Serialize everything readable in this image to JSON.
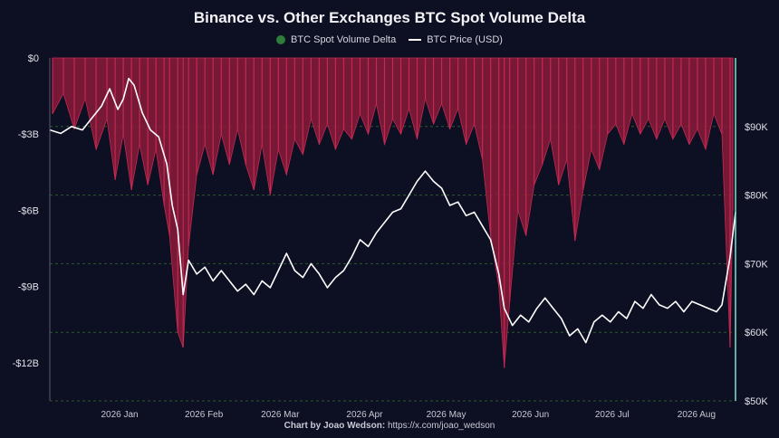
{
  "title": "Binance vs. Other Exchanges BTC Spot Volume Delta",
  "legend": {
    "delta_label": "BTC Spot Volume Delta",
    "price_label": "BTC Price (USD)"
  },
  "credit": {
    "prefix": "Chart by Joao Wedson:",
    "link": "https://x.com/joao_wedson"
  },
  "colors": {
    "background": "#0d0f22",
    "delta_fill": "#8b1a3a",
    "delta_edge": "#c22a52",
    "delta_legend": "#2e7d3a",
    "price_line": "#ffffff",
    "grid": "#2d5a2d",
    "right_axis": "#7fe0d0"
  },
  "chart_data": {
    "type": "area",
    "title": "Binance vs. Other Exchanges BTC Spot Volume Delta",
    "x_tick_labels": [
      "2026 Jan",
      "2026 Feb",
      "2026 Mar",
      "2026 Apr",
      "2026 May",
      "2026 Jun",
      "2026 Jul",
      "2026 Aug"
    ],
    "x_tick_dates": [
      "2026-01-01",
      "2026-02-01",
      "2026-03-01",
      "2026-04-01",
      "2026-05-01",
      "2026-06-01",
      "2026-07-01",
      "2026-08-01"
    ],
    "x_range": [
      "2025-12-17",
      "2026-08-26"
    ],
    "y_left": {
      "label": "",
      "ylim": [
        -13.5,
        0
      ],
      "ticks": [
        0,
        -3,
        -6,
        -9,
        -12
      ],
      "tick_labels": [
        "$0",
        "-$3B",
        "-$6B",
        "-$9B",
        "-$12B"
      ],
      "unit": "B USD"
    },
    "y_right": {
      "label": "",
      "ylim": [
        50000,
        100000
      ],
      "ticks": [
        50000,
        60000,
        70000,
        80000,
        90000
      ],
      "tick_labels": [
        "$50K",
        "$60K",
        "$70K",
        "$80K",
        "$90K"
      ]
    },
    "grid": true,
    "legend_position": "top-center",
    "series": [
      {
        "name": "BTC Spot Volume Delta",
        "axis": "left",
        "points": [
          [
            "2025-12-18",
            -2.2
          ],
          [
            "2025-12-22",
            -1.4
          ],
          [
            "2025-12-26",
            -2.8
          ],
          [
            "2025-12-30",
            -1.6
          ],
          [
            "2026-01-03",
            -3.6
          ],
          [
            "2026-01-07",
            -2.4
          ],
          [
            "2026-01-10",
            -4.8
          ],
          [
            "2026-01-13",
            -3.0
          ],
          [
            "2026-01-16",
            -5.2
          ],
          [
            "2026-01-19",
            -3.4
          ],
          [
            "2026-01-22",
            -5.0
          ],
          [
            "2026-01-25",
            -3.6
          ],
          [
            "2026-01-28",
            -5.8
          ],
          [
            "2026-01-30",
            -7.0
          ],
          [
            "2026-02-02",
            -10.8
          ],
          [
            "2026-02-04",
            -11.4
          ],
          [
            "2026-02-06",
            -7.4
          ],
          [
            "2026-02-09",
            -4.6
          ],
          [
            "2026-02-12",
            -3.4
          ],
          [
            "2026-02-15",
            -4.6
          ],
          [
            "2026-02-18",
            -3.0
          ],
          [
            "2026-02-21",
            -4.2
          ],
          [
            "2026-02-24",
            -2.8
          ],
          [
            "2026-02-27",
            -4.2
          ],
          [
            "2026-03-02",
            -5.2
          ],
          [
            "2026-03-05",
            -3.4
          ],
          [
            "2026-03-08",
            -5.4
          ],
          [
            "2026-03-11",
            -3.6
          ],
          [
            "2026-03-14",
            -4.6
          ],
          [
            "2026-03-17",
            -3.2
          ],
          [
            "2026-03-20",
            -3.8
          ],
          [
            "2026-03-23",
            -2.4
          ],
          [
            "2026-03-26",
            -3.4
          ],
          [
            "2026-03-29",
            -2.6
          ],
          [
            "2026-04-01",
            -3.6
          ],
          [
            "2026-04-04",
            -2.8
          ],
          [
            "2026-04-07",
            -3.2
          ],
          [
            "2026-04-10",
            -2.2
          ],
          [
            "2026-04-13",
            -3.0
          ],
          [
            "2026-04-16",
            -1.8
          ],
          [
            "2026-04-19",
            -3.4
          ],
          [
            "2026-04-22",
            -2.4
          ],
          [
            "2026-04-25",
            -3.0
          ],
          [
            "2026-04-28",
            -2.0
          ],
          [
            "2026-05-01",
            -3.2
          ],
          [
            "2026-05-04",
            -1.6
          ],
          [
            "2026-05-07",
            -2.6
          ],
          [
            "2026-05-10",
            -1.8
          ],
          [
            "2026-05-13",
            -2.8
          ],
          [
            "2026-05-16",
            -2.0
          ],
          [
            "2026-05-19",
            -3.4
          ],
          [
            "2026-05-22",
            -2.6
          ],
          [
            "2026-05-25",
            -4.0
          ],
          [
            "2026-05-28",
            -7.0
          ],
          [
            "2026-05-31",
            -9.0
          ],
          [
            "2026-06-02",
            -12.2
          ],
          [
            "2026-06-04",
            -9.6
          ],
          [
            "2026-06-07",
            -6.0
          ],
          [
            "2026-06-10",
            -7.0
          ],
          [
            "2026-06-13",
            -5.0
          ],
          [
            "2026-06-16",
            -4.2
          ],
          [
            "2026-06-19",
            -3.2
          ],
          [
            "2026-06-22",
            -5.0
          ],
          [
            "2026-06-25",
            -4.0
          ],
          [
            "2026-06-28",
            -7.2
          ],
          [
            "2026-07-01",
            -5.2
          ],
          [
            "2026-07-04",
            -3.6
          ],
          [
            "2026-07-07",
            -4.4
          ],
          [
            "2026-07-10",
            -3.0
          ],
          [
            "2026-07-13",
            -2.6
          ],
          [
            "2026-07-16",
            -3.4
          ],
          [
            "2026-07-19",
            -2.2
          ],
          [
            "2026-07-22",
            -3.0
          ],
          [
            "2026-07-25",
            -2.4
          ],
          [
            "2026-07-28",
            -3.2
          ],
          [
            "2026-07-31",
            -2.4
          ],
          [
            "2026-08-03",
            -3.2
          ],
          [
            "2026-08-06",
            -2.6
          ],
          [
            "2026-08-09",
            -3.4
          ],
          [
            "2026-08-12",
            -2.8
          ],
          [
            "2026-08-15",
            -3.6
          ],
          [
            "2026-08-18",
            -2.2
          ],
          [
            "2026-08-21",
            -3.0
          ],
          [
            "2026-08-24",
            -11.4
          ],
          [
            "2026-08-25",
            -6.0
          ]
        ]
      },
      {
        "name": "BTC Price (USD)",
        "axis": "right",
        "points": [
          [
            "2025-12-17",
            89500
          ],
          [
            "2025-12-21",
            89000
          ],
          [
            "2025-12-25",
            90000
          ],
          [
            "2025-12-29",
            89500
          ],
          [
            "2026-01-02",
            91500
          ],
          [
            "2026-01-05",
            93000
          ],
          [
            "2026-01-08",
            95500
          ],
          [
            "2026-01-11",
            92500
          ],
          [
            "2026-01-13",
            94000
          ],
          [
            "2026-01-15",
            97000
          ],
          [
            "2026-01-17",
            96000
          ],
          [
            "2026-01-20",
            92000
          ],
          [
            "2026-01-23",
            89500
          ],
          [
            "2026-01-26",
            88500
          ],
          [
            "2026-01-29",
            84500
          ],
          [
            "2026-01-31",
            78500
          ],
          [
            "2026-02-02",
            75000
          ],
          [
            "2026-02-04",
            65500
          ],
          [
            "2026-02-06",
            70500
          ],
          [
            "2026-02-09",
            68500
          ],
          [
            "2026-02-12",
            69500
          ],
          [
            "2026-02-15",
            67500
          ],
          [
            "2026-02-18",
            69000
          ],
          [
            "2026-02-21",
            67500
          ],
          [
            "2026-02-24",
            66000
          ],
          [
            "2026-02-27",
            67000
          ],
          [
            "2026-03-02",
            65500
          ],
          [
            "2026-03-05",
            67500
          ],
          [
            "2026-03-08",
            66500
          ],
          [
            "2026-03-11",
            69000
          ],
          [
            "2026-03-14",
            71500
          ],
          [
            "2026-03-17",
            69000
          ],
          [
            "2026-03-20",
            68000
          ],
          [
            "2026-03-23",
            70000
          ],
          [
            "2026-03-26",
            68500
          ],
          [
            "2026-03-29",
            66500
          ],
          [
            "2026-04-01",
            68000
          ],
          [
            "2026-04-04",
            69000
          ],
          [
            "2026-04-07",
            71000
          ],
          [
            "2026-04-10",
            73500
          ],
          [
            "2026-04-13",
            72500
          ],
          [
            "2026-04-16",
            74500
          ],
          [
            "2026-04-19",
            76000
          ],
          [
            "2026-04-22",
            77500
          ],
          [
            "2026-04-25",
            78000
          ],
          [
            "2026-04-28",
            80000
          ],
          [
            "2026-05-01",
            82000
          ],
          [
            "2026-05-04",
            83500
          ],
          [
            "2026-05-07",
            82000
          ],
          [
            "2026-05-10",
            81000
          ],
          [
            "2026-05-13",
            78500
          ],
          [
            "2026-05-16",
            79000
          ],
          [
            "2026-05-19",
            77000
          ],
          [
            "2026-05-22",
            77500
          ],
          [
            "2026-05-25",
            75500
          ],
          [
            "2026-05-28",
            73500
          ],
          [
            "2026-05-31",
            68500
          ],
          [
            "2026-06-02",
            63500
          ],
          [
            "2026-06-05",
            61000
          ],
          [
            "2026-06-08",
            62500
          ],
          [
            "2026-06-11",
            61500
          ],
          [
            "2026-06-14",
            63500
          ],
          [
            "2026-06-17",
            65000
          ],
          [
            "2026-06-20",
            63500
          ],
          [
            "2026-06-23",
            62000
          ],
          [
            "2026-06-26",
            59500
          ],
          [
            "2026-06-29",
            60500
          ],
          [
            "2026-07-02",
            58500
          ],
          [
            "2026-07-05",
            61500
          ],
          [
            "2026-07-08",
            62500
          ],
          [
            "2026-07-11",
            61500
          ],
          [
            "2026-07-14",
            63000
          ],
          [
            "2026-07-17",
            62000
          ],
          [
            "2026-07-20",
            64500
          ],
          [
            "2026-07-23",
            63500
          ],
          [
            "2026-07-26",
            65500
          ],
          [
            "2026-07-29",
            64000
          ],
          [
            "2026-08-01",
            63500
          ],
          [
            "2026-08-04",
            64500
          ],
          [
            "2026-08-07",
            63000
          ],
          [
            "2026-08-10",
            64500
          ],
          [
            "2026-08-13",
            64000
          ],
          [
            "2026-08-16",
            63500
          ],
          [
            "2026-08-19",
            63000
          ],
          [
            "2026-08-21",
            64000
          ],
          [
            "2026-08-24",
            71000
          ],
          [
            "2026-08-26",
            77500
          ]
        ]
      }
    ]
  }
}
